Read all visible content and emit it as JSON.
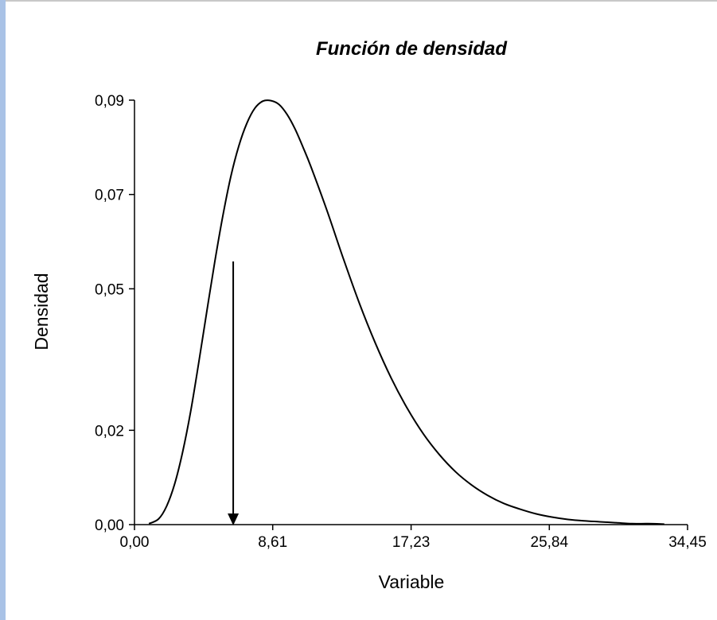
{
  "chart_data": {
    "type": "line",
    "title": "Función de densidad",
    "xlabel": "Variable",
    "ylabel": "Densidad",
    "xlim": [
      0,
      34.45
    ],
    "ylim": [
      0,
      0.09
    ],
    "x_ticks": [
      0,
      8.61,
      17.23,
      25.84,
      34.45
    ],
    "x_tick_labels": [
      "0,00",
      "8,61",
      "17,23",
      "25,84",
      "34,45"
    ],
    "y_ticks": [
      0,
      0.02,
      0.05,
      0.07,
      0.09
    ],
    "y_tick_labels": [
      "0,00",
      "0,02",
      "0,05",
      "0,07",
      "0,09"
    ],
    "grid": false,
    "series": [
      {
        "color": "#000000",
        "x": [
          0.9,
          1.5,
          2.0,
          2.5,
          3.0,
          3.5,
          4.0,
          4.5,
          5.0,
          5.5,
          6.0,
          6.5,
          7.0,
          7.5,
          8.0,
          8.5,
          9.0,
          9.5,
          10.0,
          10.5,
          11.0,
          12.0,
          13.0,
          14.0,
          15.0,
          16.0,
          17.0,
          18.0,
          19.0,
          20.0,
          21.0,
          22.0,
          23.0,
          24.0,
          25.0,
          26.0,
          27.0,
          28.0,
          29.0,
          30.0,
          31.0,
          32.0,
          33.0
        ],
        "y": [
          0.0002,
          0.0012,
          0.0039,
          0.0086,
          0.0154,
          0.024,
          0.0343,
          0.0451,
          0.0557,
          0.0654,
          0.0738,
          0.0803,
          0.0851,
          0.0883,
          0.0898,
          0.0899,
          0.0891,
          0.087,
          0.0839,
          0.08,
          0.0758,
          0.0665,
          0.0565,
          0.047,
          0.0385,
          0.031,
          0.0246,
          0.0192,
          0.0148,
          0.0112,
          0.0084,
          0.0062,
          0.0045,
          0.0033,
          0.0023,
          0.0016,
          0.0011,
          0.0008,
          0.0006,
          0.0004,
          0.0002,
          0.0002,
          0.0001
        ]
      }
    ],
    "annotations": [
      {
        "type": "arrow",
        "x": 6.15,
        "y_start": 0.0558,
        "y_end": 0.0,
        "color": "#000000"
      }
    ]
  }
}
